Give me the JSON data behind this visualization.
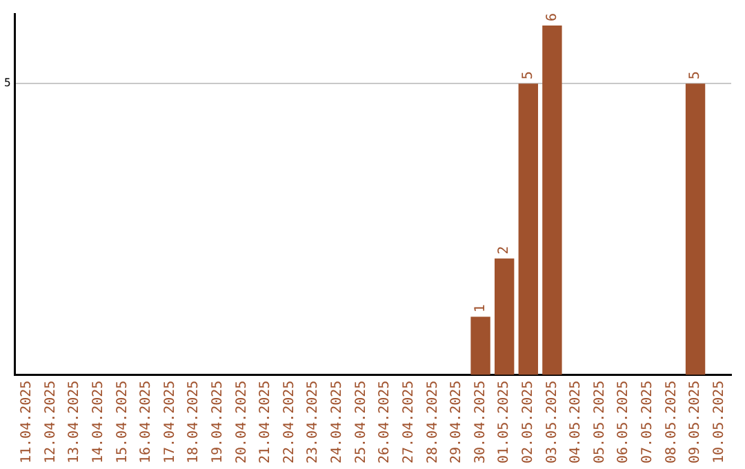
{
  "chart_data": {
    "type": "bar",
    "categories": [
      "11.04.2025",
      "12.04.2025",
      "13.04.2025",
      "14.04.2025",
      "15.04.2025",
      "16.04.2025",
      "17.04.2025",
      "18.04.2025",
      "19.04.2025",
      "20.04.2025",
      "21.04.2025",
      "22.04.2025",
      "23.04.2025",
      "24.04.2025",
      "25.04.2025",
      "26.04.2025",
      "27.04.2025",
      "28.04.2025",
      "29.04.2025",
      "30.04.2025",
      "01.05.2025",
      "02.05.2025",
      "03.05.2025",
      "04.05.2025",
      "05.05.2025",
      "06.05.2025",
      "07.05.2025",
      "08.05.2025",
      "09.05.2025",
      "10.05.2025"
    ],
    "values": [
      null,
      null,
      null,
      null,
      null,
      null,
      null,
      null,
      null,
      null,
      null,
      null,
      null,
      null,
      null,
      null,
      null,
      null,
      null,
      1,
      2,
      5,
      6,
      null,
      null,
      null,
      null,
      null,
      5,
      null
    ],
    "color": "#a0522d",
    "ylim": [
      0,
      6.2
    ],
    "yticks": [
      5
    ],
    "grid": "y",
    "data_labels": true,
    "legend": false
  }
}
